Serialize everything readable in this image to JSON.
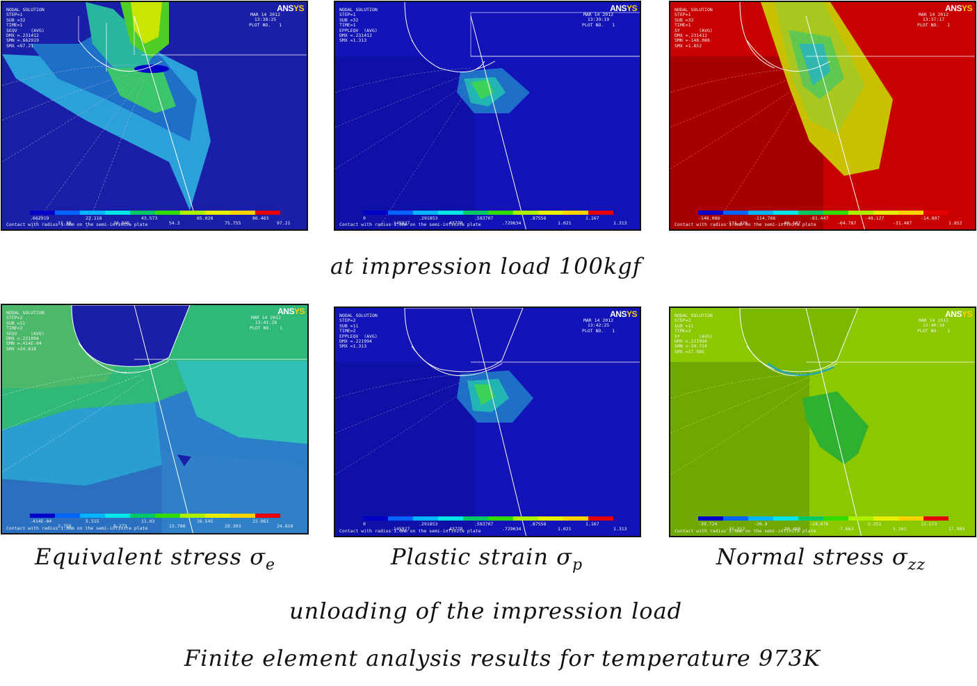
{
  "colorbar_colors": [
    "#0000c8",
    "#0064ff",
    "#00b4ff",
    "#00e6e6",
    "#00c864",
    "#32dc00",
    "#aaf000",
    "#e6f000",
    "#ffd200",
    "#e60000"
  ],
  "panels": [
    {
      "header": "NODAL SOLUTION\nSTEP=1\nSUB =32\nTIME=1\nSEQV     (AVG)\nDMX =.231412\nSMN =.662919\nSMX =97.21",
      "date": "MAR 14 2012\n13:38:25\nPLOT NO.   1",
      "ticks_top": [
        ".662919",
        "22.118",
        "43.573",
        "65.028",
        "86.483"
      ],
      "ticks_bottom": [
        "11.39",
        "32.845",
        "54.3",
        "75.755",
        "97.21"
      ],
      "caption": "Contact with radius 1.0mm on the semi-infinite plate",
      "theme": "seqv"
    },
    {
      "header": "NODAL SOLUTION\nSTEP=1\nSUB =32\nTIME=1\nEPPLEQV  (AVG)\nDMX =.231412\nSMX =1.313",
      "date": "MAR 14 2012\n13:39:19\nPLOT NO.   1",
      "ticks_top": [
        "0",
        ".291853",
        ".583707",
        ".87556",
        "1.167"
      ],
      "ticks_bottom": [
        ".145927",
        ".43778",
        ".729634",
        "1.021",
        "1.313"
      ],
      "caption": "Contact with radius 1.0mm on the semi-infinite plate",
      "theme": "epl"
    },
    {
      "header": "NODAL SOLUTION\nSTEP=1\nSUB =32\nTIME=1\nSY       (AVG)\nDMX =.231412\nSMN =-148.086\nSMX =1.852",
      "date": "MAR 14 2012\n13:37:17\nPLOT NO.   1",
      "ticks_top": [
        "-148.086",
        "-114.766",
        "-81.447",
        "-48.127",
        "-14.807"
      ],
      "ticks_bottom": [
        "-131.426",
        "-98.107",
        "-64.787",
        "-31.467",
        "1.852"
      ],
      "caption": "Contact with radius 1.0mm on the semi-infinite plate",
      "theme": "sy"
    },
    {
      "header": "NODAL SOLUTION\nSTEP=2\nSUB =11\nTIME=2\nSEQV     (AVG)\nDMX =.221994\nSMN =.414E-04\nSMX =24.818",
      "date": "MAR 14 2012\n13:41:28\nPLOT NO.   1",
      "ticks_top": [
        ".414E-04",
        "5.515",
        "11.03",
        "16.545",
        "22.061"
      ],
      "ticks_bottom": [
        "2.758",
        "8.273",
        "13.788",
        "19.303",
        "24.818"
      ],
      "caption": "Contact with radius 1.0mm on the semi-infinite plate",
      "theme": "seqv2"
    },
    {
      "header": "NODAL SOLUTION\nSTEP=2\nSUB =11\nTIME=2\nEPPLEQV  (AVG)\nDMX =.221994\nSMX =1.313",
      "date": "MAR 14 2012\n13:42:25\nPLOT NO.   1",
      "ticks_top": [
        "0",
        ".291853",
        ".583707",
        ".87556",
        "1.167"
      ],
      "ticks_bottom": [
        ".145927",
        ".43778",
        ".729634",
        "1.021",
        "1.313"
      ],
      "caption": "Contact with radius 1.0mm on the semi-infinite plate",
      "theme": "epl"
    },
    {
      "header": "NODAL SOLUTION\nSTEP=2\nSUB =11\nTIME=2\nSY       (AVG)\nDMX =.221994\nSMN =-39.724\nSMX =17.985",
      "date": "MAR 14 2012\n13:40:34\nPLOT NO.   1",
      "ticks_top": [
        "-39.724",
        "-26.9",
        "-14.076",
        "-1.251",
        "11.573"
      ],
      "ticks_bottom": [
        "-33.312",
        "-20.488",
        "-7.663",
        "5.161",
        "17.985"
      ],
      "caption": "Contact with radius 1.0mm on the semi-infinite plate",
      "theme": "sy2"
    }
  ],
  "labels": {
    "row1": "at impression load 100kgf",
    "col1_main": "Equivalent stress σ",
    "col1_sub": "e",
    "col2_main": "Plastic strain σ",
    "col2_sub": "p",
    "col3_main": "Normal stress σ",
    "col3_sub": "zz",
    "row2": "unloading of  the impression load",
    "footer": "Finite element analysis results for temperature 973K"
  }
}
